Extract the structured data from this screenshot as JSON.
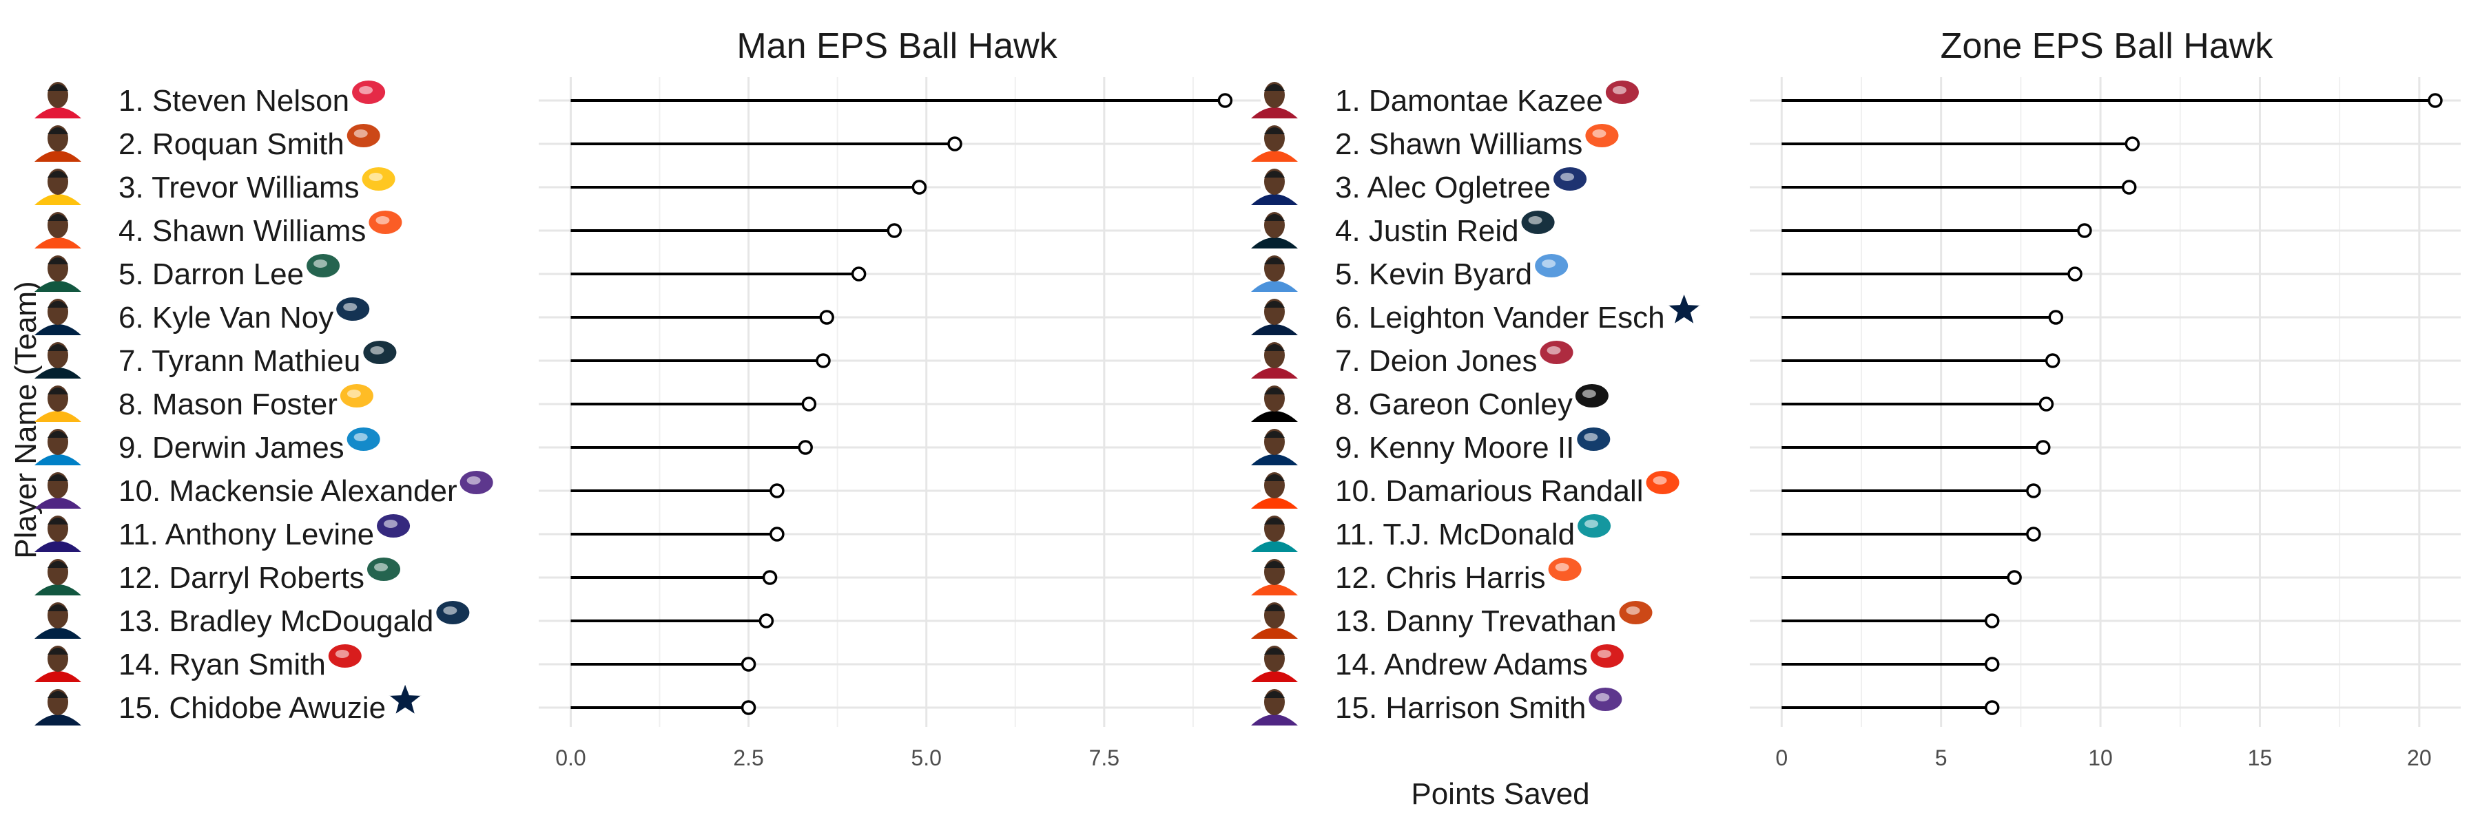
{
  "ylabel": "Player Name (Team)",
  "xlabel": "Points Saved",
  "chart_data": [
    {
      "type": "lollipop",
      "title": "Man EPS Ball Hawk",
      "xlim": [
        -0.45,
        9.7
      ],
      "x_ticks": [
        0,
        2.5,
        5,
        7.5
      ],
      "x_tick_labels": [
        "0.0",
        "2.5",
        "5.0",
        "7.5"
      ],
      "grid": true,
      "players": [
        {
          "label": "1. Steven Nelson",
          "team_icon": "chiefs-logo",
          "team_color": "#E31837",
          "value": 9.2
        },
        {
          "label": "2. Roquan Smith",
          "team_icon": "bears-logo",
          "team_color": "#C83803",
          "value": 5.4
        },
        {
          "label": "3. Trevor Williams",
          "team_icon": "chargers-logo",
          "team_color": "#FFC20E",
          "value": 4.9
        },
        {
          "label": "4. Shawn Williams",
          "team_icon": "bengals-logo",
          "team_color": "#FB4F14",
          "value": 4.55
        },
        {
          "label": "5. Darron Lee",
          "team_icon": "jets-logo",
          "team_color": "#125740",
          "value": 4.05
        },
        {
          "label": "6. Kyle Van Noy",
          "team_icon": "patriots-logo",
          "team_color": "#002244",
          "value": 3.6
        },
        {
          "label": "7. Tyrann Mathieu",
          "team_icon": "texans-logo",
          "team_color": "#03202F",
          "value": 3.55
        },
        {
          "label": "8. Mason Foster",
          "team_icon": "washington-logo",
          "team_color": "#FFB612",
          "value": 3.35
        },
        {
          "label": "9. Derwin James",
          "team_icon": "chargers-logo",
          "team_color": "#0080C6",
          "value": 3.3
        },
        {
          "label": "10. Mackensie Alexander",
          "team_icon": "vikings-logo",
          "team_color": "#4F2683",
          "value": 2.9
        },
        {
          "label": "11. Anthony Levine",
          "team_icon": "ravens-logo",
          "team_color": "#241773",
          "value": 2.9
        },
        {
          "label": "12. Darryl Roberts",
          "team_icon": "jets-logo",
          "team_color": "#125740",
          "value": 2.8
        },
        {
          "label": "13. Bradley McDougald",
          "team_icon": "seahawks-logo",
          "team_color": "#002244",
          "value": 2.75
        },
        {
          "label": "14. Ryan Smith",
          "team_icon": "buccaneers-logo",
          "team_color": "#D50A0A",
          "value": 2.5
        },
        {
          "label": "15. Chidobe Awuzie",
          "team_icon": "cowboys-logo",
          "team_color": "#041E42",
          "value": 2.5
        }
      ]
    },
    {
      "type": "lollipop",
      "title": "Zone EPS Ball Hawk",
      "xlim": [
        -1.0,
        21.3
      ],
      "x_ticks": [
        0,
        5,
        10,
        15,
        20
      ],
      "x_tick_labels": [
        "0",
        "5",
        "10",
        "15",
        "20"
      ],
      "grid": true,
      "players": [
        {
          "label": "1. Damontae Kazee",
          "team_icon": "falcons-logo",
          "team_color": "#A71930",
          "value": 20.5
        },
        {
          "label": "2. Shawn Williams",
          "team_icon": "bengals-logo",
          "team_color": "#FB4F14",
          "value": 11.0
        },
        {
          "label": "3. Alec Ogletree",
          "team_icon": "giants-logo",
          "team_color": "#0B2265",
          "value": 10.9
        },
        {
          "label": "4. Justin Reid",
          "team_icon": "texans-logo",
          "team_color": "#03202F",
          "value": 9.5
        },
        {
          "label": "5. Kevin Byard",
          "team_icon": "titans-logo",
          "team_color": "#4B92DB",
          "value": 9.2
        },
        {
          "label": "6. Leighton Vander Esch",
          "team_icon": "cowboys-logo",
          "team_color": "#041E42",
          "value": 8.6
        },
        {
          "label": "7. Deion Jones",
          "team_icon": "falcons-logo",
          "team_color": "#A71930",
          "value": 8.5
        },
        {
          "label": "8. Gareon Conley",
          "team_icon": "raiders-logo",
          "team_color": "#000000",
          "value": 8.3
        },
        {
          "label": "9. Kenny Moore II",
          "team_icon": "colts-logo",
          "team_color": "#002C5F",
          "value": 8.2
        },
        {
          "label": "10. Damarious Randall",
          "team_icon": "browns-logo",
          "team_color": "#FF3C00",
          "value": 7.9
        },
        {
          "label": "11. T.J. McDonald",
          "team_icon": "dolphins-logo",
          "team_color": "#008E97",
          "value": 7.9
        },
        {
          "label": "12. Chris Harris",
          "team_icon": "broncos-logo",
          "team_color": "#FB4F14",
          "value": 7.3
        },
        {
          "label": "13. Danny Trevathan",
          "team_icon": "bears-logo",
          "team_color": "#C83803",
          "value": 6.6
        },
        {
          "label": "14. Andrew Adams",
          "team_icon": "buccaneers-logo",
          "team_color": "#D50A0A",
          "value": 6.6
        },
        {
          "label": "15. Harrison Smith",
          "team_icon": "vikings-logo",
          "team_color": "#4F2683",
          "value": 6.6
        }
      ]
    }
  ]
}
